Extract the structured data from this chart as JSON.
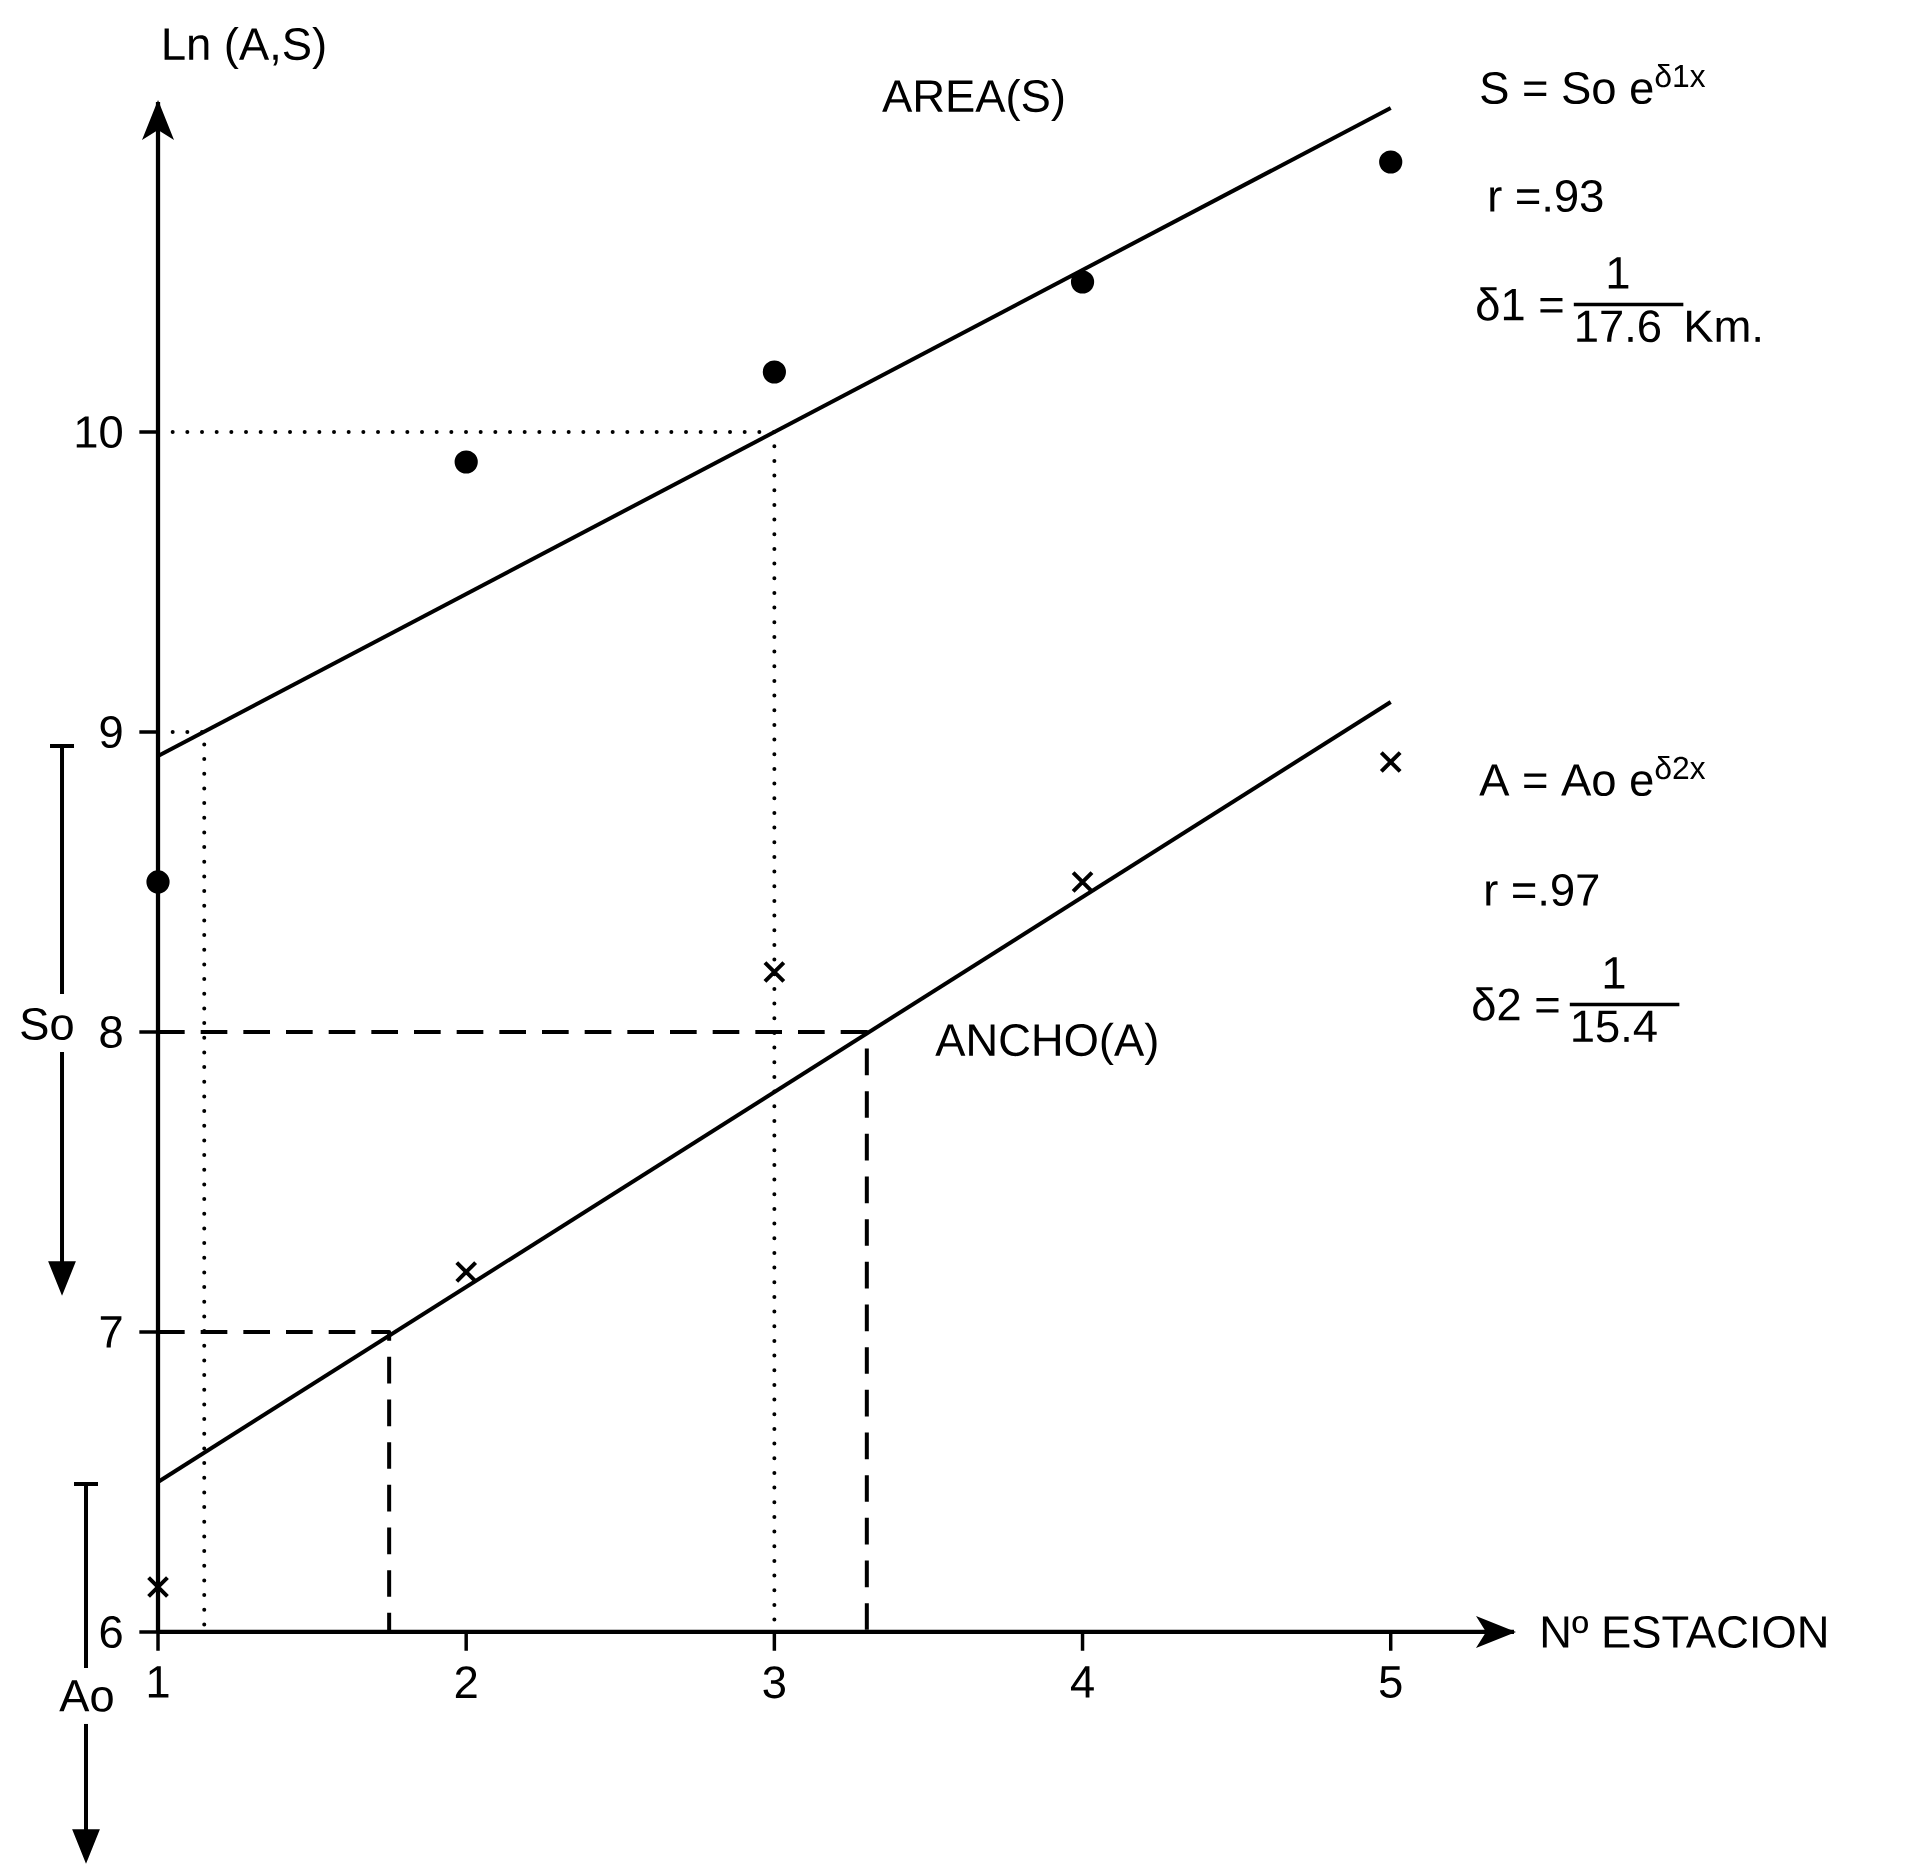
{
  "chart_data": {
    "type": "scatter",
    "xlabel": "Nº ESTACION",
    "ylabel": "Ln (A,S)",
    "xlim": [
      1,
      5.4
    ],
    "ylim": [
      6,
      11.1
    ],
    "xticks": [
      1,
      2,
      3,
      4,
      5
    ],
    "yticks": [
      6,
      7,
      8,
      9,
      10
    ],
    "series": [
      {
        "marker": "circle",
        "color": "#000000",
        "x": [
          1,
          2,
          3,
          4,
          5
        ],
        "values": [
          8.5,
          9.9,
          10.2,
          10.5,
          10.9
        ]
      },
      {
        "marker": "cross",
        "color": "#000000",
        "x": [
          1,
          2,
          3,
          4,
          5
        ],
        "values": [
          6.15,
          7.2,
          8.2,
          8.5,
          8.9
        ]
      },
      {
        "type": "line",
        "line_style": "solid",
        "color": "#000000",
        "x": [
          1,
          5
        ],
        "values": [
          8.92,
          11.08
        ]
      },
      {
        "type": "line",
        "line_style": "solid",
        "color": "#000000",
        "x": [
          1,
          5
        ],
        "values": [
          6.5,
          9.1
        ]
      },
      {
        "type": "line",
        "line_style": "dotted",
        "color": "#000000",
        "x": [
          1,
          3,
          3
        ],
        "values": [
          10,
          10,
          6
        ]
      },
      {
        "type": "line",
        "line_style": "dotted",
        "color": "#000000",
        "x": [
          1,
          1.15,
          1.15
        ],
        "values": [
          9,
          9,
          6
        ]
      },
      {
        "type": "line",
        "line_style": "dashed",
        "color": "#000000",
        "x": [
          1,
          3.3,
          3.3
        ],
        "values": [
          8,
          8,
          6
        ]
      },
      {
        "type": "line",
        "line_style": "dashed",
        "color": "#000000",
        "x": [
          1,
          1.75,
          1.75
        ],
        "values": [
          7,
          7,
          6
        ]
      }
    ],
    "annotations": [
      "AREA(S)",
      "S = So e$^{δ1x}$",
      "r =.93",
      "δ1 =",
      "1",
      "17.6",
      "Km.",
      "A = Ao e$^{δ2x}$",
      "r =.97",
      "δ2 =",
      "1",
      "15.4",
      "ANCHO(A)",
      "So",
      "Ao"
    ]
  }
}
